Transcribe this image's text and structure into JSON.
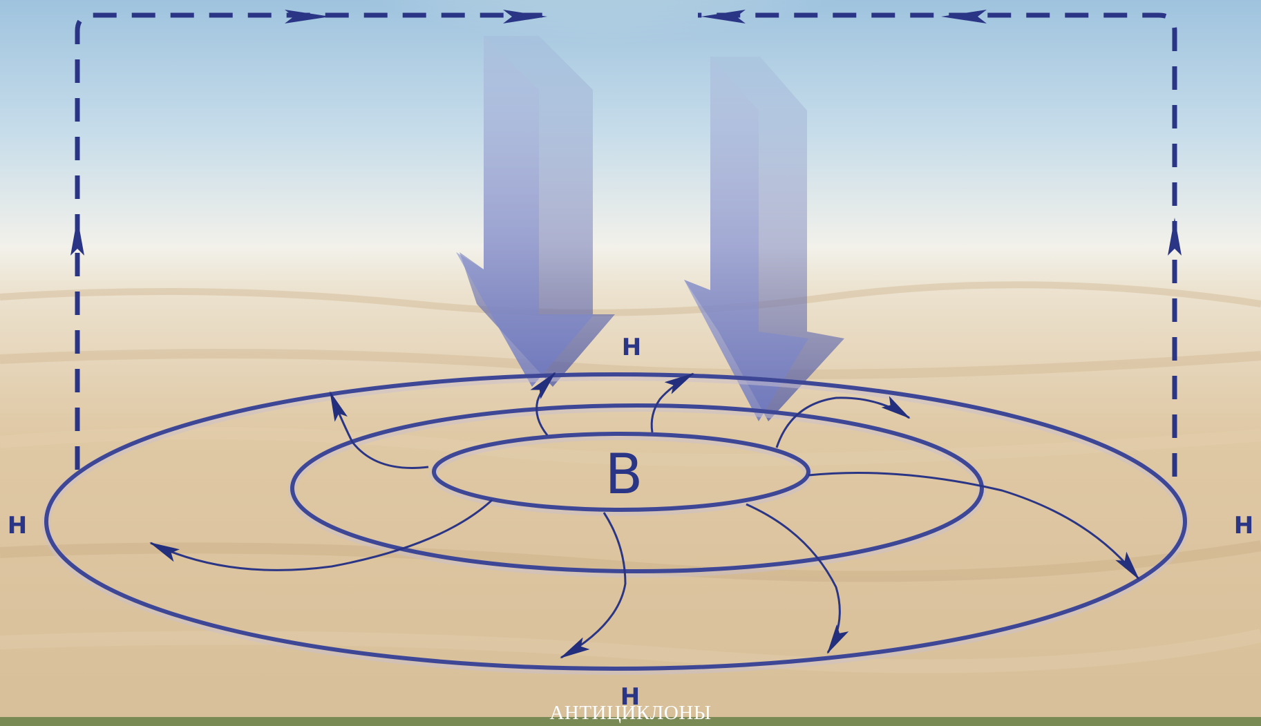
{
  "diagram": {
    "center_label": "В",
    "low_labels": {
      "top": "Н",
      "left": "Н",
      "right": "Н",
      "bottom": "Н"
    },
    "caption": "АНТИЦИКЛОНЫ",
    "colors": {
      "line": "#2b3585",
      "isobar": "#3d4796",
      "arrow_fill": "#7b86c8",
      "sky_glow": "#e9f58a",
      "ground": "#d9c3a0"
    }
  }
}
